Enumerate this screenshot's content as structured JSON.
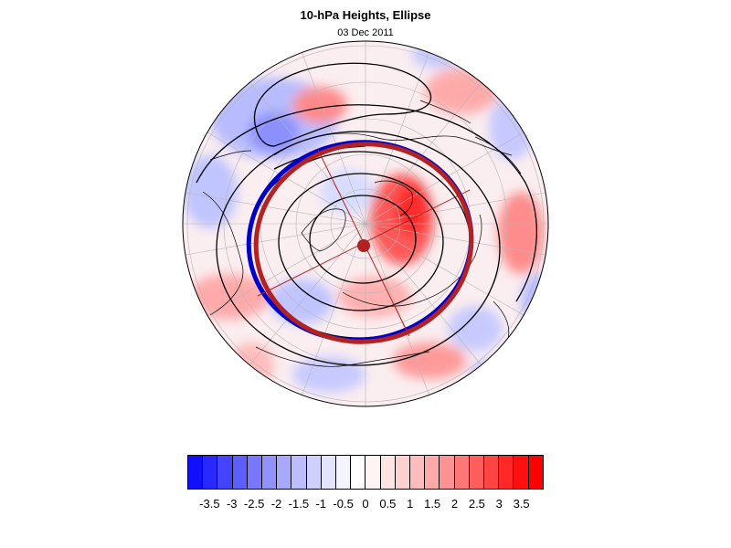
{
  "header": {
    "title": "10-hPa Heights, Ellipse",
    "subtitle": "03 Dec 2011"
  },
  "map": {
    "projection": "polar-stereographic-north",
    "elements": [
      "height-anomaly-shading",
      "geopotential-height-contours",
      "coastlines",
      "lat-lon-grid",
      "fitted-ellipse",
      "ellipse-center",
      "ellipse-axes"
    ],
    "colors": {
      "ellipse_red": "#b22222",
      "ellipse_blue": "#0000cc",
      "contour": "#000000"
    }
  },
  "colorbar": {
    "colors": [
      "#1010ff",
      "#2828ff",
      "#4444ff",
      "#5e5eff",
      "#7878ff",
      "#9292ff",
      "#a8a8ff",
      "#bcbcff",
      "#d0d0ff",
      "#e4e4ff",
      "#f4f4ff",
      "#ffffff",
      "#fff4f4",
      "#ffe4e4",
      "#ffd0d0",
      "#ffbcbc",
      "#ffa8a8",
      "#ff9292",
      "#ff7878",
      "#ff5e5e",
      "#ff4444",
      "#ff2828",
      "#ff1010",
      "#ff0000"
    ],
    "labels": [
      "-3.5",
      "-3",
      "-2.5",
      "-2",
      "-1.5",
      "-1",
      "-0.5",
      "0",
      "0.5",
      "1",
      "1.5",
      "2",
      "2.5",
      "3",
      "3.5"
    ],
    "label_segment_index": [
      1,
      3,
      5,
      7,
      9,
      11,
      13,
      15,
      17,
      19,
      21,
      23,
      25,
      27,
      29
    ]
  }
}
